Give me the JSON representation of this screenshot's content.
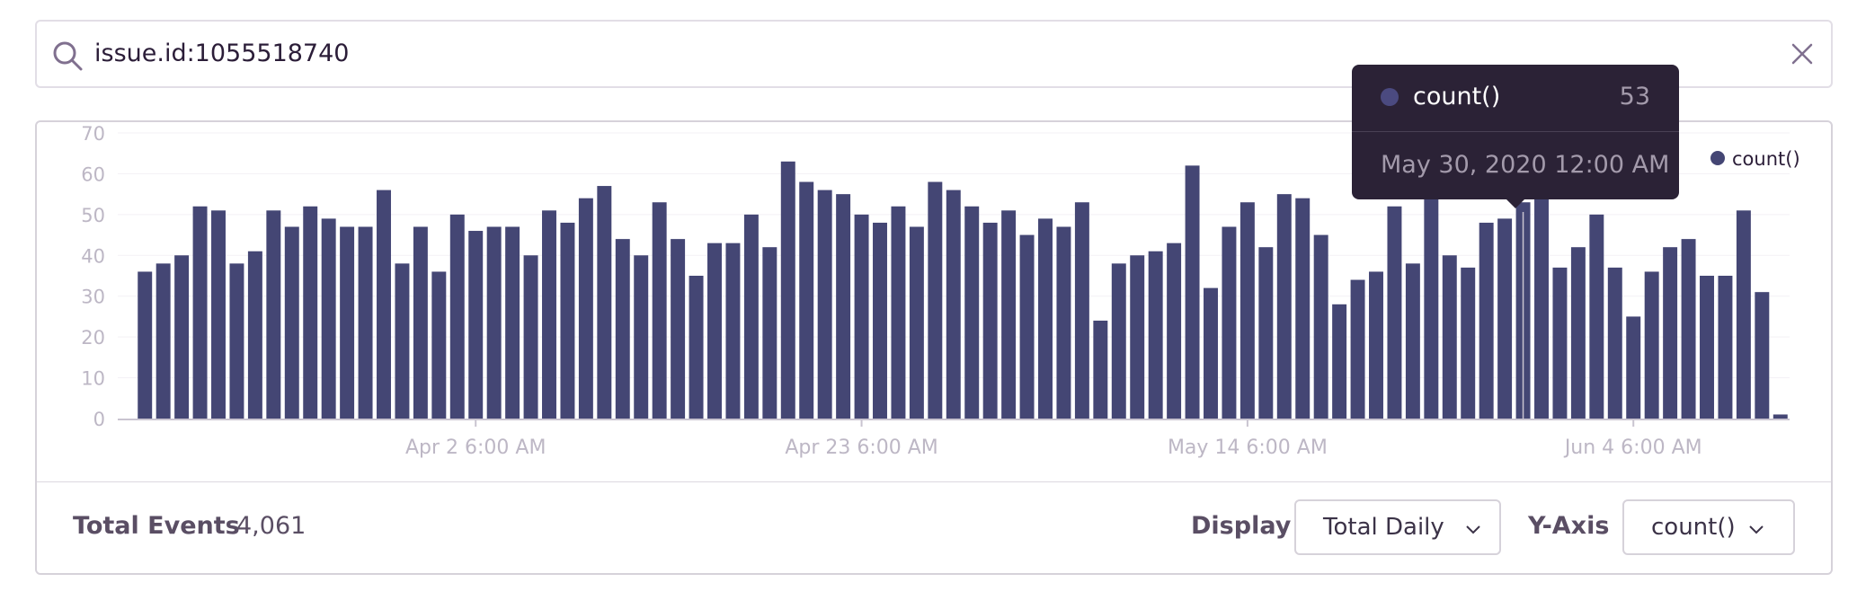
{
  "search": {
    "query": "issue.id:1055518740",
    "icon": "search-icon",
    "clear_icon": "close-icon"
  },
  "chart_data": {
    "type": "bar",
    "title": "",
    "xlabel": "",
    "ylabel": "",
    "ylim": [
      0,
      70
    ],
    "yticks": [
      "0",
      "10",
      "20",
      "30",
      "40",
      "50",
      "60",
      "70"
    ],
    "xtick_labels": [
      {
        "label": "Apr 2 6:00 AM",
        "index": 18.5
      },
      {
        "label": "Apr 23 6:00 AM",
        "index": 39.5
      },
      {
        "label": "May 14 6:00 AM",
        "index": 60.5
      },
      {
        "label": "Jun 4 6:00 AM",
        "index": 81.5
      }
    ],
    "legend": [
      {
        "name": "count()",
        "color": "#444674"
      }
    ],
    "series": [
      {
        "name": "count()",
        "color": "#444674",
        "values": [
          36,
          38,
          40,
          52,
          51,
          38,
          41,
          51,
          47,
          52,
          49,
          47,
          47,
          56,
          38,
          47,
          36,
          50,
          46,
          47,
          47,
          40,
          51,
          48,
          54,
          57,
          44,
          40,
          53,
          44,
          35,
          43,
          43,
          50,
          42,
          63,
          58,
          56,
          55,
          50,
          48,
          52,
          47,
          58,
          56,
          52,
          48,
          51,
          45,
          49,
          47,
          53,
          24,
          38,
          40,
          41,
          43,
          62,
          32,
          47,
          53,
          42,
          55,
          54,
          45,
          28,
          34,
          36,
          52,
          38,
          62,
          40,
          37,
          48,
          49,
          53,
          54,
          37,
          42,
          50,
          37,
          25,
          36,
          42,
          44,
          35,
          35,
          51,
          31,
          1
        ]
      }
    ],
    "highlight_index": 75
  },
  "tooltip": {
    "series": "count()",
    "value": "53",
    "date": "May 30, 2020 12:00 AM"
  },
  "footer": {
    "total_label": "Total Events",
    "total_value": "4,061",
    "display_label": "Display",
    "display_value": "Total Daily",
    "yaxis_label": "Y-Axis",
    "yaxis_value": "count()"
  },
  "colors": {
    "bar": "#444674",
    "axis_text": "#bdb7c5",
    "tooltip_bg": "#2b2236"
  }
}
